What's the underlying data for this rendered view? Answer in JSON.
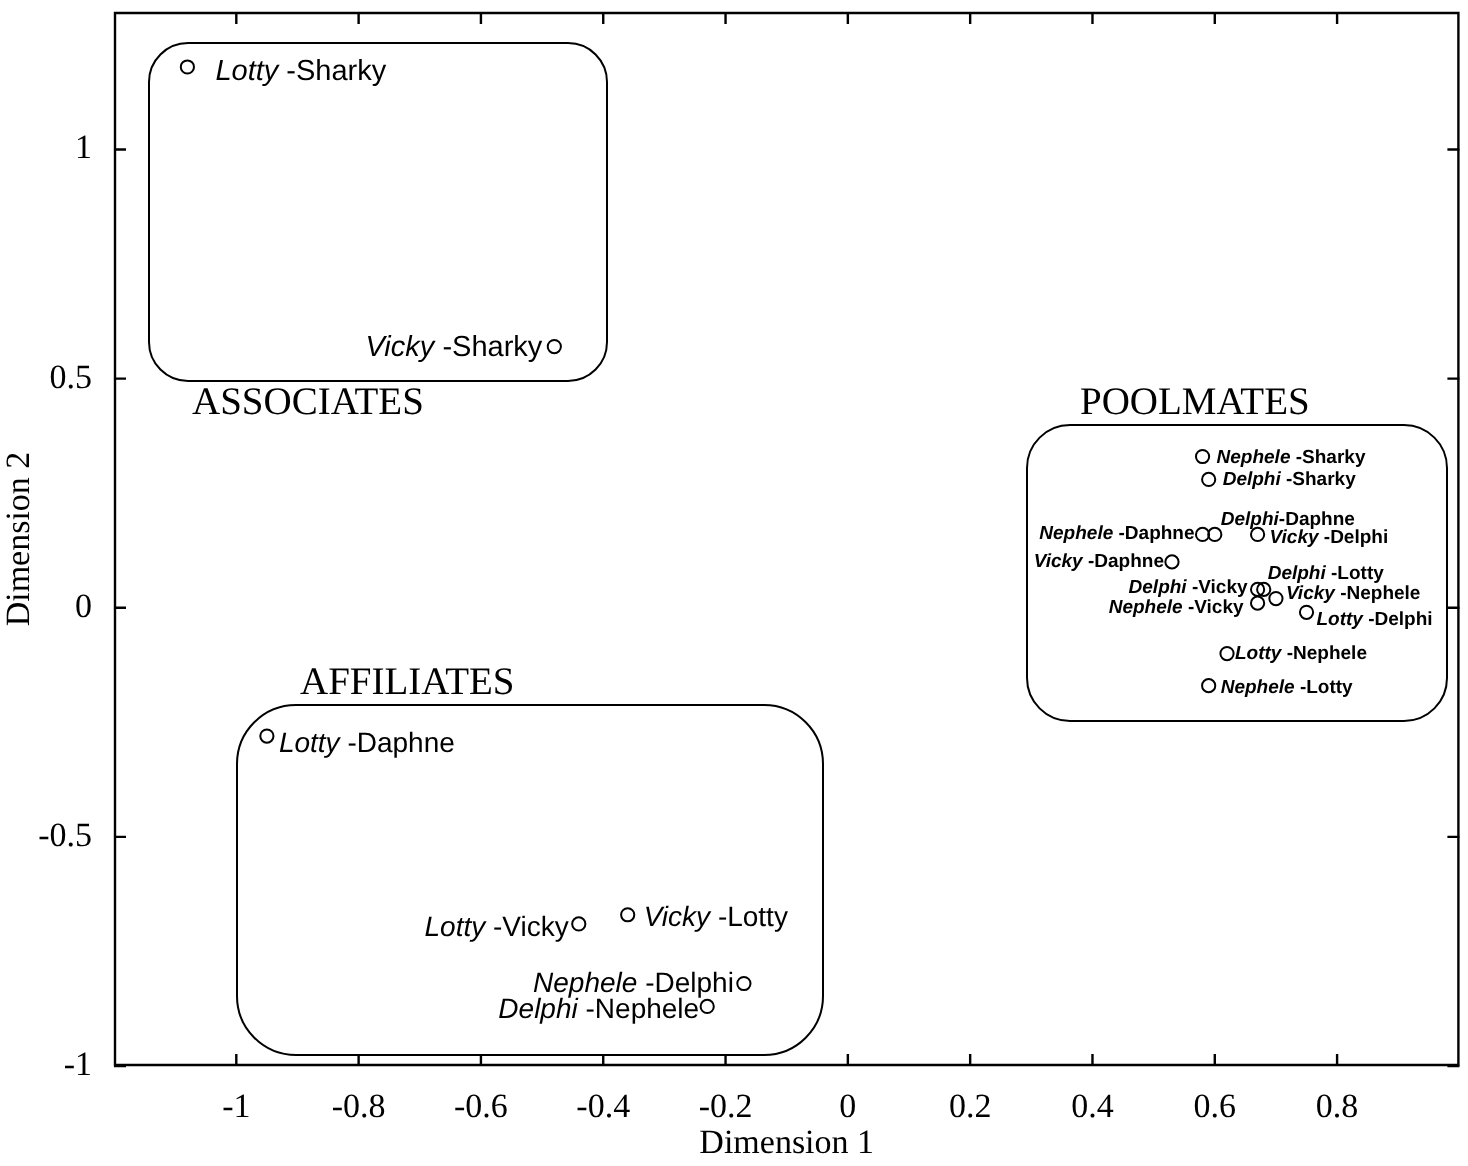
{
  "chart_data": {
    "type": "scatter",
    "xlabel": "Dimension 1",
    "ylabel": "Dimension 2",
    "x": [
      -1.08,
      -0.48,
      0.58,
      0.59,
      0.58,
      0.6,
      0.67,
      0.53,
      0.67,
      0.68,
      0.67,
      0.7,
      0.75,
      0.62,
      0.59,
      -0.95,
      -0.44,
      -0.36,
      -0.17,
      -0.23
    ],
    "values": [
      1.18,
      0.57,
      0.33,
      0.28,
      0.16,
      0.16,
      0.16,
      0.1,
      0.04,
      0.04,
      0.01,
      0.02,
      -0.01,
      -0.1,
      -0.17,
      -0.28,
      -0.69,
      -0.67,
      -0.82,
      -0.87
    ],
    "color": "#000000",
    "marker": "circle",
    "xlim": [
      -1.2,
      1
    ],
    "ylim": [
      -1,
      1.3
    ],
    "xticks": [
      -1,
      -0.8,
      -0.6,
      -0.4,
      -0.2,
      0,
      0.2,
      0.4,
      0.6,
      0.8
    ],
    "yticks": [
      -1,
      -0.5,
      0,
      0.5,
      1
    ],
    "annotations": [
      {
        "text": "Lotty -Sharky",
        "x": -1.08,
        "y": 1.18
      },
      {
        "text": "Vicky -Sharky",
        "x": -0.48,
        "y": 0.57
      },
      {
        "text": "Nephele -Sharky",
        "x": 0.58,
        "y": 0.33
      },
      {
        "text": "Delphi -Sharky",
        "x": 0.59,
        "y": 0.28
      },
      {
        "text": "Nephele -Daphne",
        "x": 0.58,
        "y": 0.16
      },
      {
        "text": "Delphi-Daphne",
        "x": 0.6,
        "y": 0.16
      },
      {
        "text": "Vicky -Delphi",
        "x": 0.67,
        "y": 0.16
      },
      {
        "text": "Vicky -Daphne",
        "x": 0.53,
        "y": 0.1
      },
      {
        "text": "Delphi -Vicky",
        "x": 0.67,
        "y": 0.04
      },
      {
        "text": "Delphi -Lotty",
        "x": 0.68,
        "y": 0.04
      },
      {
        "text": "Nephele -Vicky",
        "x": 0.67,
        "y": 0.01
      },
      {
        "text": "Vicky -Nephele",
        "x": 0.7,
        "y": 0.02
      },
      {
        "text": "Lotty -Delphi",
        "x": 0.75,
        "y": -0.01
      },
      {
        "text": "Lotty -Nephele",
        "x": 0.62,
        "y": -0.1
      },
      {
        "text": "Nephele -Lotty",
        "x": 0.59,
        "y": -0.17
      },
      {
        "text": "Lotty -Daphne",
        "x": -0.95,
        "y": -0.28
      },
      {
        "text": "Lotty -Vicky",
        "x": -0.44,
        "y": -0.69
      },
      {
        "text": "Vicky -Lotty",
        "x": -0.36,
        "y": -0.67
      },
      {
        "text": "Nephele -Delphi",
        "x": -0.17,
        "y": -0.82
      },
      {
        "text": "Delphi -Nephele",
        "x": -0.23,
        "y": -0.87
      },
      "ASSOCIATES",
      "POOLMATES",
      "AFFILIATES"
    ]
  }
}
